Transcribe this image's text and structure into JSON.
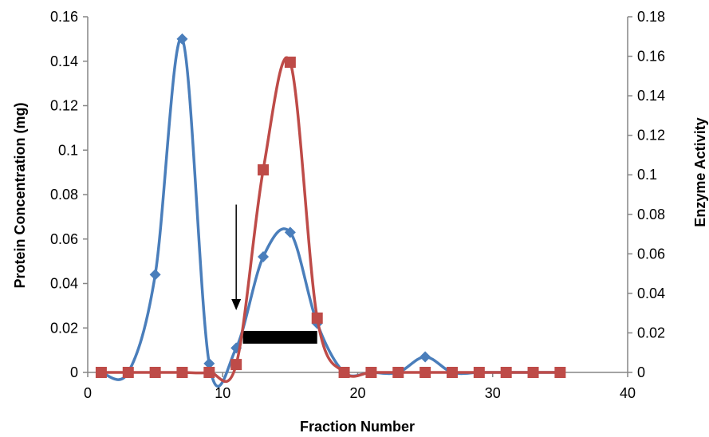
{
  "chart_data": {
    "type": "line",
    "xlabel": "Fraction Number",
    "ylabel_left": "Protein Concentration (mg)",
    "ylabel_right": "Enzyme Activity",
    "xlim": [
      0,
      40
    ],
    "ylim_left": [
      0,
      0.16
    ],
    "ylim_right": [
      0,
      0.18
    ],
    "x_ticks": [
      "0",
      "10",
      "20",
      "30",
      "40"
    ],
    "y_left_ticks": [
      "0",
      "0.02",
      "0.04",
      "0.06",
      "0.08",
      "0.1",
      "0.12",
      "0.14",
      "0.16"
    ],
    "y_right_ticks": [
      "0",
      "0.02",
      "0.04",
      "0.06",
      "0.08",
      "0.1",
      "0.12",
      "0.14",
      "0.16",
      "0.18"
    ],
    "grid": false,
    "series": [
      {
        "axis": "left",
        "color": "#4a7ebb",
        "marker": "diamond",
        "points": [
          [
            1,
            0
          ],
          [
            3,
            0
          ],
          [
            5,
            0.044
          ],
          [
            7,
            0.15
          ],
          [
            9,
            0.004
          ],
          [
            11,
            0.011
          ],
          [
            13,
            0.052
          ],
          [
            15,
            0.063
          ],
          [
            17,
            0.022
          ],
          [
            19,
            0
          ],
          [
            21,
            0
          ],
          [
            23,
            0
          ],
          [
            25,
            0.007
          ],
          [
            27,
            0
          ],
          [
            29,
            0
          ],
          [
            31,
            0
          ],
          [
            33,
            0
          ],
          [
            35,
            0
          ]
        ]
      },
      {
        "axis": "right",
        "color": "#be4b48",
        "marker": "square",
        "points": [
          [
            1,
            0
          ],
          [
            3,
            0
          ],
          [
            5,
            0
          ],
          [
            7,
            0
          ],
          [
            9,
            0
          ],
          [
            11,
            0.004
          ],
          [
            13,
            0.1025
          ],
          [
            15,
            0.157
          ],
          [
            17,
            0.0275
          ],
          [
            19,
            0
          ],
          [
            21,
            0
          ],
          [
            23,
            0
          ],
          [
            25,
            0
          ],
          [
            27,
            0
          ],
          [
            29,
            0
          ],
          [
            31,
            0
          ],
          [
            33,
            0
          ],
          [
            35,
            0
          ]
        ]
      }
    ],
    "annotations": {
      "arrow": {
        "x": 11,
        "y_top": 0.0755,
        "y_bottom": 0.028
      },
      "bar": {
        "x_start": 11.5,
        "x_end": 17,
        "y_center": 0.0158
      }
    }
  }
}
